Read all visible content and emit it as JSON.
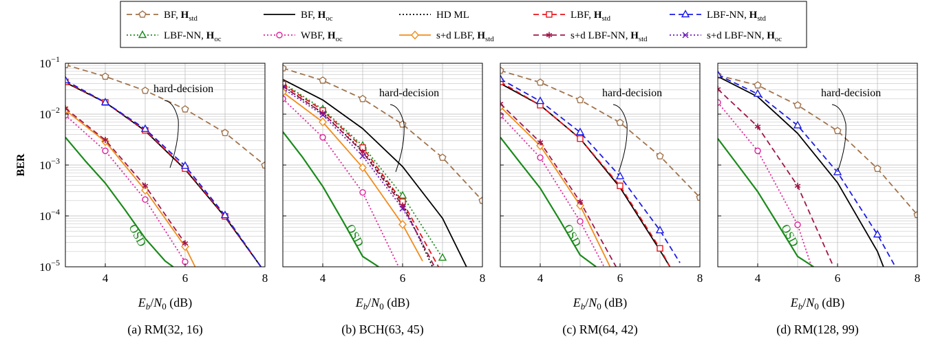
{
  "legend": {
    "items": [
      {
        "key": "bf_std",
        "label": "BF, H_std",
        "color": "#a0724a",
        "dash": "8,5",
        "marker": "pentagon"
      },
      {
        "key": "bf_oc",
        "label": "BF, H_oc",
        "color": "#000000",
        "dash": "",
        "marker": "none"
      },
      {
        "key": "hd_ml",
        "label": "HD ML",
        "color": "#000000",
        "dash": "2,3",
        "marker": "none"
      },
      {
        "key": "lbf_std",
        "label": "LBF, H_std",
        "color": "#e8141b",
        "dash": "8,5",
        "marker": "square"
      },
      {
        "key": "lbfnn_std",
        "label": "LBF-NN, H_std",
        "color": "#1a1ae6",
        "dash": "8,5",
        "marker": "triangle"
      },
      {
        "key": "lbfnn_oc",
        "label": "LBF-NN, H_oc",
        "color": "#1a8a1a",
        "dash": "2,3",
        "marker": "triangle"
      },
      {
        "key": "wbf_oc",
        "label": "WBF, H_oc",
        "color": "#e0209a",
        "dash": "2,3",
        "marker": "circle"
      },
      {
        "key": "sd_lbf_std",
        "label": "s+d LBF, H_std",
        "color": "#f28c1a",
        "dash": "",
        "marker": "diamond"
      },
      {
        "key": "sd_lbfnn_std",
        "label": "s+d LBF-NN, H_std",
        "color": "#a0154a",
        "dash": "8,5",
        "marker": "star"
      },
      {
        "key": "sd_lbfnn_oc",
        "label": "s+d LBF-NN, H_oc",
        "color": "#6a1ab8",
        "dash": "2,3",
        "marker": "cross"
      }
    ]
  },
  "chart_data": [
    {
      "type": "line",
      "caption": "(a) RM(32, 16)",
      "xlabel": "E_b/N_0 (dB)",
      "ylabel": "BER",
      "xlim": [
        3,
        8
      ],
      "ylim": [
        1e-05,
        0.1
      ],
      "yscale": "log",
      "xticks": [
        4,
        6,
        8
      ],
      "annotations": [
        {
          "text": "hard-decision"
        },
        {
          "text": "OSD"
        }
      ],
      "series": [
        {
          "key": "bf_std",
          "x": [
            3,
            4,
            5,
            6,
            7,
            8
          ],
          "y": [
            0.093,
            0.055,
            0.029,
            0.0125,
            0.0043,
            0.00099
          ]
        },
        {
          "key": "bf_oc",
          "x": [
            3,
            4,
            5,
            6,
            7,
            7.9
          ],
          "y": [
            0.042,
            0.017,
            0.0047,
            0.00082,
            9.5e-05,
            1e-05
          ]
        },
        {
          "key": "hd_ml",
          "x": [
            3,
            4,
            5,
            6,
            7,
            7.9
          ],
          "y": [
            0.042,
            0.017,
            0.0047,
            0.00082,
            9.5e-05,
            1e-05
          ]
        },
        {
          "key": "lbf_std",
          "x": [
            3,
            4,
            5,
            6,
            7,
            7.9
          ],
          "y": [
            0.043,
            0.017,
            0.0048,
            0.00085,
            9.8e-05,
            1e-05
          ]
        },
        {
          "key": "lbfnn_std",
          "x": [
            3,
            4,
            5,
            6,
            7,
            7.9
          ],
          "y": [
            0.046,
            0.017,
            0.0051,
            0.00096,
            0.000103,
            1e-05
          ]
        },
        {
          "key": "wbf_oc",
          "x": [
            3,
            4,
            5,
            6
          ],
          "y": [
            0.0095,
            0.0019,
            0.00021,
            1.25e-05
          ]
        },
        {
          "key": "sd_lbf_std",
          "x": [
            3,
            4,
            5,
            6,
            6.25
          ],
          "y": [
            0.012,
            0.0029,
            0.00032,
            2.5e-05,
            1e-05
          ]
        },
        {
          "key": "sd_lbfnn_std",
          "x": [
            3,
            4,
            5,
            6
          ],
          "y": [
            0.013,
            0.0031,
            0.00039,
            2.9e-05
          ]
        },
        {
          "key": "osd",
          "color": "#1a8a1a",
          "x": [
            3,
            3.5,
            4,
            4.5,
            5,
            5.5,
            5.7
          ],
          "y": [
            0.0035,
            0.0012,
            0.00044,
            0.00013,
            3.6e-05,
            1.3e-05,
            1e-05
          ]
        }
      ]
    },
    {
      "type": "line",
      "caption": "(b) BCH(63, 45)",
      "xlabel": "E_b/N_0 (dB)",
      "ylabel": "",
      "xlim": [
        3,
        8
      ],
      "ylim": [
        1e-05,
        0.1
      ],
      "yscale": "log",
      "xticks": [
        4,
        6,
        8
      ],
      "annotations": [
        {
          "text": "hard-decision"
        },
        {
          "text": "OSD"
        }
      ],
      "series": [
        {
          "key": "bf_std",
          "x": [
            3,
            4,
            5,
            6,
            7,
            8
          ],
          "y": [
            0.08,
            0.046,
            0.02,
            0.0063,
            0.0014,
            0.0002
          ]
        },
        {
          "key": "bf_oc",
          "x": [
            3,
            4,
            5,
            6,
            7,
            7.6
          ],
          "y": [
            0.048,
            0.019,
            0.0052,
            0.00093,
            9e-05,
            1e-05
          ]
        },
        {
          "key": "hd_ml",
          "x": [
            3,
            4,
            5,
            6,
            6.75
          ],
          "y": [
            0.036,
            0.0105,
            0.0019,
            0.00018,
            1e-05
          ]
        },
        {
          "key": "lbfnn_oc",
          "x": [
            3,
            4,
            5,
            6,
            7
          ],
          "y": [
            0.041,
            0.0125,
            0.0024,
            0.00025,
            1.5e-05
          ]
        },
        {
          "key": "lbf_std",
          "x": [
            3,
            4,
            5,
            6,
            6.9
          ],
          "y": [
            0.039,
            0.0118,
            0.0022,
            0.00019,
            1e-05
          ]
        },
        {
          "key": "sd_lbfnn_std",
          "x": [
            3,
            4,
            5,
            6,
            6.8
          ],
          "y": [
            0.035,
            0.0105,
            0.0018,
            0.00016,
            1e-05
          ]
        },
        {
          "key": "sd_lbfnn_oc",
          "x": [
            3,
            4,
            5,
            6,
            6.5
          ],
          "y": [
            0.032,
            0.0097,
            0.0015,
            0.00014,
            3e-05
          ]
        },
        {
          "key": "sd_lbf_std",
          "x": [
            3,
            4,
            5,
            6,
            6.5
          ],
          "y": [
            0.027,
            0.007,
            0.00089,
            6.8e-05,
            1.3e-05
          ]
        },
        {
          "key": "wbf_oc",
          "x": [
            3,
            4,
            5,
            5.9
          ],
          "y": [
            0.02,
            0.0035,
            0.00029,
            1e-05
          ]
        },
        {
          "key": "osd",
          "color": "#1a8a1a",
          "x": [
            3,
            3.5,
            4,
            4.5,
            5,
            5.4
          ],
          "y": [
            0.0045,
            0.0014,
            0.00038,
            8e-05,
            1.6e-05,
            1e-05
          ]
        }
      ]
    },
    {
      "type": "line",
      "caption": "(c) RM(64, 42)",
      "xlabel": "E_b/N_0 (dB)",
      "ylabel": "",
      "xlim": [
        3,
        8
      ],
      "ylim": [
        1e-05,
        0.1
      ],
      "yscale": "log",
      "xticks": [
        4,
        6,
        8
      ],
      "annotations": [
        {
          "text": "hard-decision"
        },
        {
          "text": "OSD"
        }
      ],
      "series": [
        {
          "key": "bf_std",
          "x": [
            3,
            4,
            5,
            6,
            7,
            8
          ],
          "y": [
            0.072,
            0.042,
            0.019,
            0.0068,
            0.0015,
            0.00023
          ]
        },
        {
          "key": "bf_oc",
          "x": [
            3,
            4,
            5,
            6,
            7,
            7.25
          ],
          "y": [
            0.04,
            0.015,
            0.0033,
            0.00036,
            2.1e-05,
            1e-05
          ]
        },
        {
          "key": "lbf_std",
          "x": [
            3,
            4,
            5,
            6,
            7,
            7.25
          ],
          "y": [
            0.043,
            0.015,
            0.0033,
            0.00039,
            2.3e-05,
            1e-05
          ]
        },
        {
          "key": "lbfnn_std",
          "x": [
            3,
            4,
            5,
            6,
            7,
            7.5
          ],
          "y": [
            0.049,
            0.018,
            0.0044,
            0.0006,
            5.2e-05,
            1.2e-05
          ]
        },
        {
          "key": "wbf_oc",
          "x": [
            3,
            4,
            5,
            5.6
          ],
          "y": [
            0.0095,
            0.0014,
            7.8e-05,
            1e-05
          ]
        },
        {
          "key": "sd_lbf_std",
          "x": [
            3,
            4,
            5,
            5.75
          ],
          "y": [
            0.014,
            0.0024,
            0.00016,
            1e-05
          ]
        },
        {
          "key": "sd_lbfnn_std",
          "x": [
            3,
            4,
            5,
            5.9
          ],
          "y": [
            0.016,
            0.0028,
            0.00019,
            1e-05
          ]
        },
        {
          "key": "osd",
          "color": "#1a8a1a",
          "x": [
            3,
            3.5,
            4,
            4.5,
            5,
            5.4
          ],
          "y": [
            0.0035,
            0.0011,
            0.00035,
            8e-05,
            1.7e-05,
            1e-05
          ]
        }
      ]
    },
    {
      "type": "line",
      "caption": "(d) RM(128, 99)",
      "xlabel": "E_b/N_0 (dB)",
      "ylabel": "",
      "xlim": [
        3,
        8
      ],
      "ylim": [
        1e-05,
        0.1
      ],
      "yscale": "log",
      "xticks": [
        4,
        6,
        8
      ],
      "annotations": [
        {
          "text": "hard-decision"
        },
        {
          "text": "OSD"
        }
      ],
      "series": [
        {
          "key": "bf_std",
          "x": [
            3,
            4,
            5,
            6,
            7,
            8
          ],
          "y": [
            0.058,
            0.037,
            0.015,
            0.0047,
            0.00085,
            0.000105
          ]
        },
        {
          "key": "bf_oc",
          "x": [
            3,
            4,
            5,
            6,
            7,
            7.15
          ],
          "y": [
            0.055,
            0.022,
            0.0042,
            0.00045,
            2e-05,
            1e-05
          ]
        },
        {
          "key": "lbfnn_std",
          "x": [
            3,
            4,
            5,
            6,
            7,
            7.45
          ],
          "y": [
            0.059,
            0.025,
            0.006,
            0.00072,
            4.3e-05,
            1e-05
          ]
        },
        {
          "key": "wbf_oc",
          "x": [
            3,
            4,
            5,
            5.35
          ],
          "y": [
            0.017,
            0.0019,
            6.7e-05,
            1e-05
          ]
        },
        {
          "key": "sd_lbfnn_std",
          "x": [
            3,
            4,
            5,
            5.9
          ],
          "y": [
            0.031,
            0.0057,
            0.00039,
            1e-05
          ]
        },
        {
          "key": "osd",
          "color": "#1a8a1a",
          "x": [
            3,
            3.5,
            4,
            4.5,
            5,
            5.4
          ],
          "y": [
            0.0033,
            0.001,
            0.0003,
            7e-05,
            1.6e-05,
            1e-05
          ]
        }
      ]
    }
  ]
}
